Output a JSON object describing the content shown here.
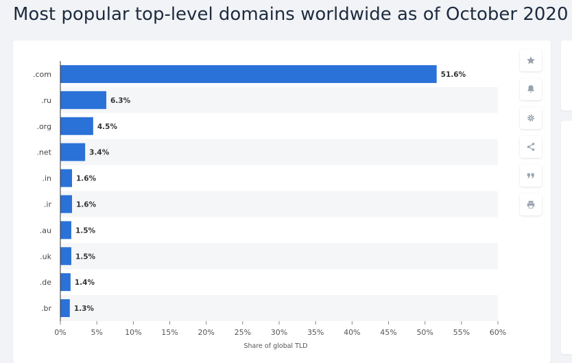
{
  "page": {
    "title": "Most popular top-level domains worldwide as of October 2020"
  },
  "toolbar": {
    "buttons": [
      {
        "name": "favorite",
        "icon": "star-icon"
      },
      {
        "name": "notification",
        "icon": "bell-icon"
      },
      {
        "name": "settings",
        "icon": "gear-icon"
      },
      {
        "name": "share",
        "icon": "share-icon"
      },
      {
        "name": "cite",
        "icon": "quote-icon"
      },
      {
        "name": "print",
        "icon": "print-icon"
      }
    ]
  },
  "colors": {
    "bar": "#2a72d8",
    "stripe": "#f5f6f8",
    "text": "#333333",
    "axis": "#333333",
    "icon": "#9aa3ad"
  },
  "chart_data": {
    "type": "bar",
    "orientation": "horizontal",
    "title": "Most popular top-level domains worldwide as of October 2020",
    "xlabel": "Share of global TLD",
    "ylabel": "",
    "categories": [
      ".com",
      ".ru",
      ".org",
      ".net",
      ".in",
      ".ir",
      ".au",
      ".uk",
      ".de",
      ".br"
    ],
    "values": [
      51.6,
      6.3,
      4.5,
      3.4,
      1.6,
      1.6,
      1.5,
      1.5,
      1.4,
      1.3
    ],
    "value_labels": [
      "51.6%",
      "6.3%",
      "4.5%",
      "3.4%",
      "1.6%",
      "1.6%",
      "1.5%",
      "1.5%",
      "1.4%",
      "1.3%"
    ],
    "xlim": [
      0,
      60
    ],
    "xticks": [
      "0%",
      "5%",
      "10%",
      "15%",
      "20%",
      "25%",
      "30%",
      "35%",
      "40%",
      "45%",
      "50%",
      "55%",
      "60%"
    ],
    "grid": false,
    "legend": "none"
  }
}
